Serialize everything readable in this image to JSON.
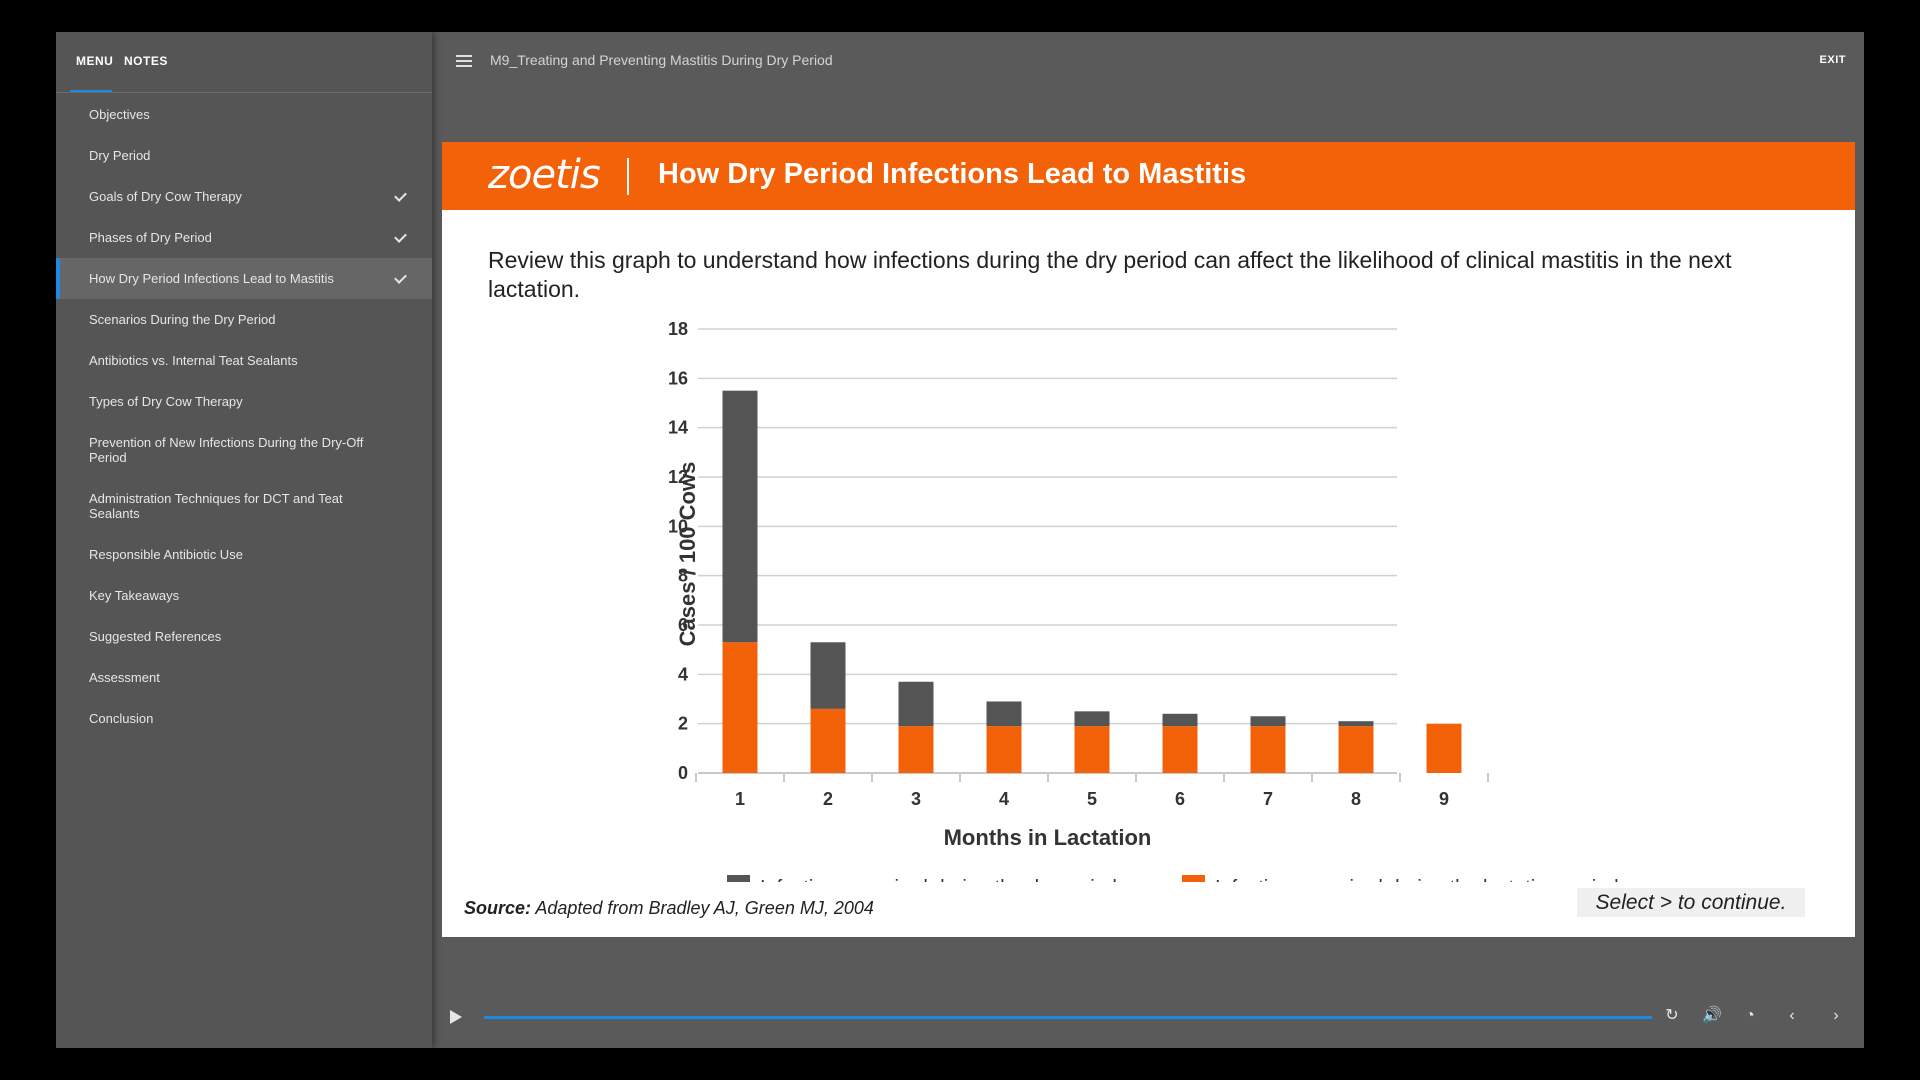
{
  "sidebar": {
    "tabs": [
      {
        "label": "MENU"
      },
      {
        "label": "NOTES"
      }
    ],
    "items": [
      {
        "label": "Objectives",
        "checked": false
      },
      {
        "label": "Dry Period",
        "checked": false
      },
      {
        "label": "Goals of Dry Cow Therapy",
        "checked": true
      },
      {
        "label": "Phases of Dry Period",
        "checked": true
      },
      {
        "label": "How Dry Period Infections Lead to Mastitis",
        "checked": true,
        "active": true
      },
      {
        "label": "Scenarios During the Dry Period",
        "checked": false
      },
      {
        "label": "Antibiotics vs. Internal Teat Sealants",
        "checked": false
      },
      {
        "label": "Types of Dry Cow Therapy",
        "checked": false
      },
      {
        "label": "Prevention of New Infections During the Dry-Off Period",
        "checked": false
      },
      {
        "label": "Administration Techniques for DCT and Teat Sealants",
        "checked": false
      },
      {
        "label": "Responsible Antibiotic Use",
        "checked": false
      },
      {
        "label": "Key Takeaways",
        "checked": false
      },
      {
        "label": "Suggested References",
        "checked": false
      },
      {
        "label": "Assessment",
        "checked": false
      },
      {
        "label": "Conclusion",
        "checked": false
      }
    ]
  },
  "header": {
    "course_title": "M9_Treating and Preventing Mastitis During Dry Period",
    "exit_label": "EXIT"
  },
  "slide": {
    "logo_text": "zoetis",
    "title": "How Dry Period Infections Lead to Mastitis",
    "intro": "Review this graph to understand how infections during the dry period can affect the likelihood of clinical mastitis in the next lactation.",
    "source_label": "Source:",
    "source_text": "Adapted from Bradley AJ, Green MJ, 2004",
    "continue_prompt": "Select > to continue.",
    "accent_color": "#f36108"
  },
  "chart_data": {
    "type": "bar",
    "stacked": true,
    "categories": [
      "1",
      "2",
      "3",
      "4",
      "5",
      "6",
      "7",
      "8",
      "9"
    ],
    "series": [
      {
        "name": "Infections acquired during the lactation period",
        "color": "#f36108",
        "values": [
          5.3,
          2.6,
          1.9,
          1.9,
          1.9,
          1.9,
          1.9,
          1.9,
          2.0
        ]
      },
      {
        "name": "Infections acquired during the dry period",
        "color": "#555555",
        "values": [
          10.2,
          2.7,
          1.8,
          1.0,
          0.6,
          0.5,
          0.4,
          0.2,
          0.0
        ]
      }
    ],
    "legend_order": [
      "Infections acquired during the dry period",
      "Infections acquired during the lactation period"
    ],
    "xlabel": "Months in Lactation",
    "ylabel": "Cases / 100 Cows",
    "ylim": [
      0,
      18
    ],
    "yticks": [
      0,
      2,
      4,
      6,
      8,
      10,
      12,
      14,
      16,
      18
    ],
    "grid": true,
    "legend_position": "bottom"
  },
  "player": {
    "controls": [
      "play-icon",
      "replay-icon",
      "volume-icon",
      "playback-speed-icon",
      "previous-icon",
      "next-icon"
    ]
  }
}
